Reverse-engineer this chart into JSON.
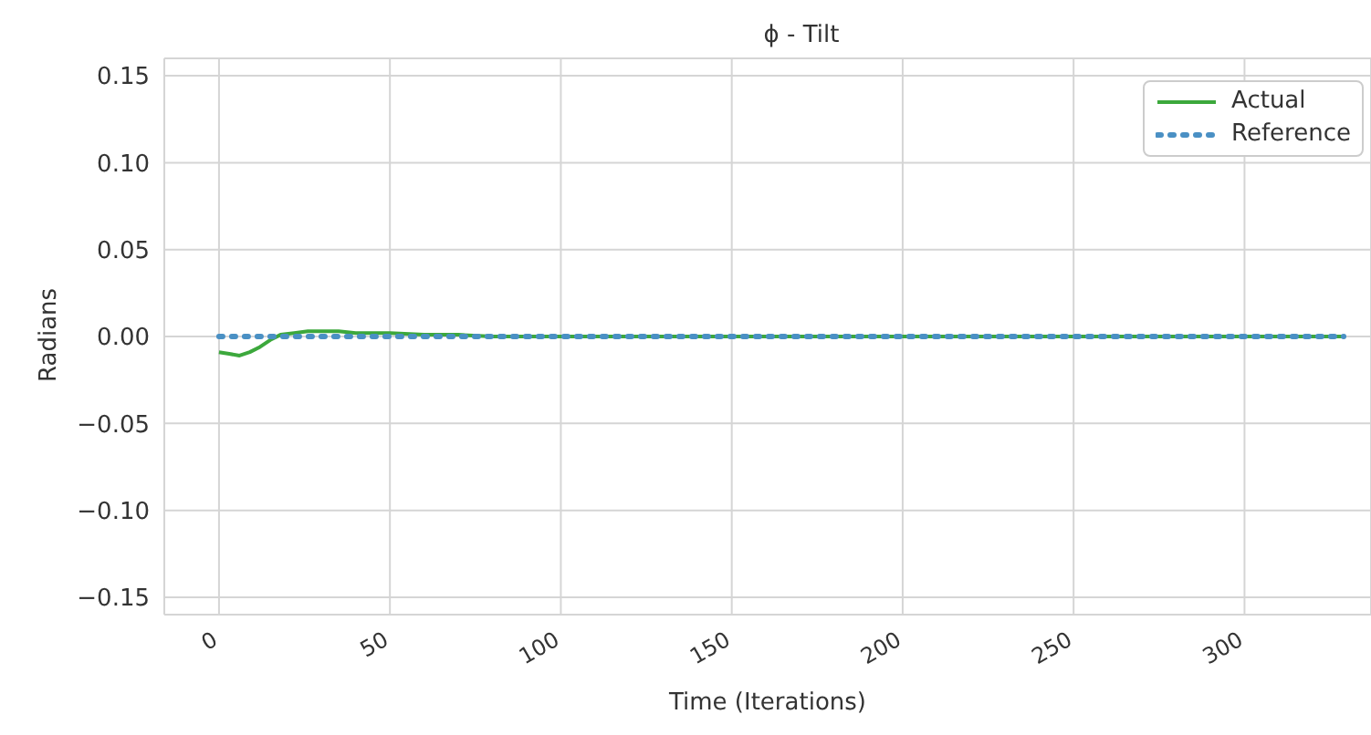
{
  "chart_data": {
    "type": "line",
    "title": "ϕ - Tilt",
    "xlabel": "Time (Iterations)",
    "ylabel": "Radians",
    "xlim": [
      -16,
      337
    ],
    "xticks": [
      0,
      50,
      100,
      150,
      200,
      250,
      300
    ],
    "ylim": [
      -0.16,
      0.16
    ],
    "yticks": [
      {
        "value": -0.15,
        "label": "−0.15"
      },
      {
        "value": -0.1,
        "label": "−0.10"
      },
      {
        "value": -0.05,
        "label": "−0.05"
      },
      {
        "value": 0,
        "label": "0.00"
      },
      {
        "value": 0.05,
        "label": "0.05"
      },
      {
        "value": 0.1,
        "label": "0.10"
      },
      {
        "value": 0.15,
        "label": "0.15"
      }
    ],
    "grid": true,
    "legend": "top right",
    "marker": "none",
    "series": [
      {
        "name": "Actual",
        "color": "#3ca83c",
        "line_style": "solid",
        "x": [
          0,
          3,
          6,
          9,
          12,
          15,
          18,
          22,
          26,
          30,
          35,
          40,
          45,
          50,
          60,
          70,
          80,
          100,
          150,
          200,
          250,
          300,
          329
        ],
        "values": [
          -0.009,
          -0.01,
          -0.011,
          -0.009,
          -0.006,
          -0.002,
          0.001,
          0.002,
          0.003,
          0.003,
          0.003,
          0.002,
          0.002,
          0.002,
          0.001,
          0.001,
          0,
          0,
          0,
          0,
          0,
          0,
          0
        ]
      },
      {
        "name": "Reference",
        "color": "#4a90c4",
        "line_style": "dotted",
        "x": [
          0,
          329
        ],
        "values": [
          0,
          0
        ]
      }
    ]
  }
}
